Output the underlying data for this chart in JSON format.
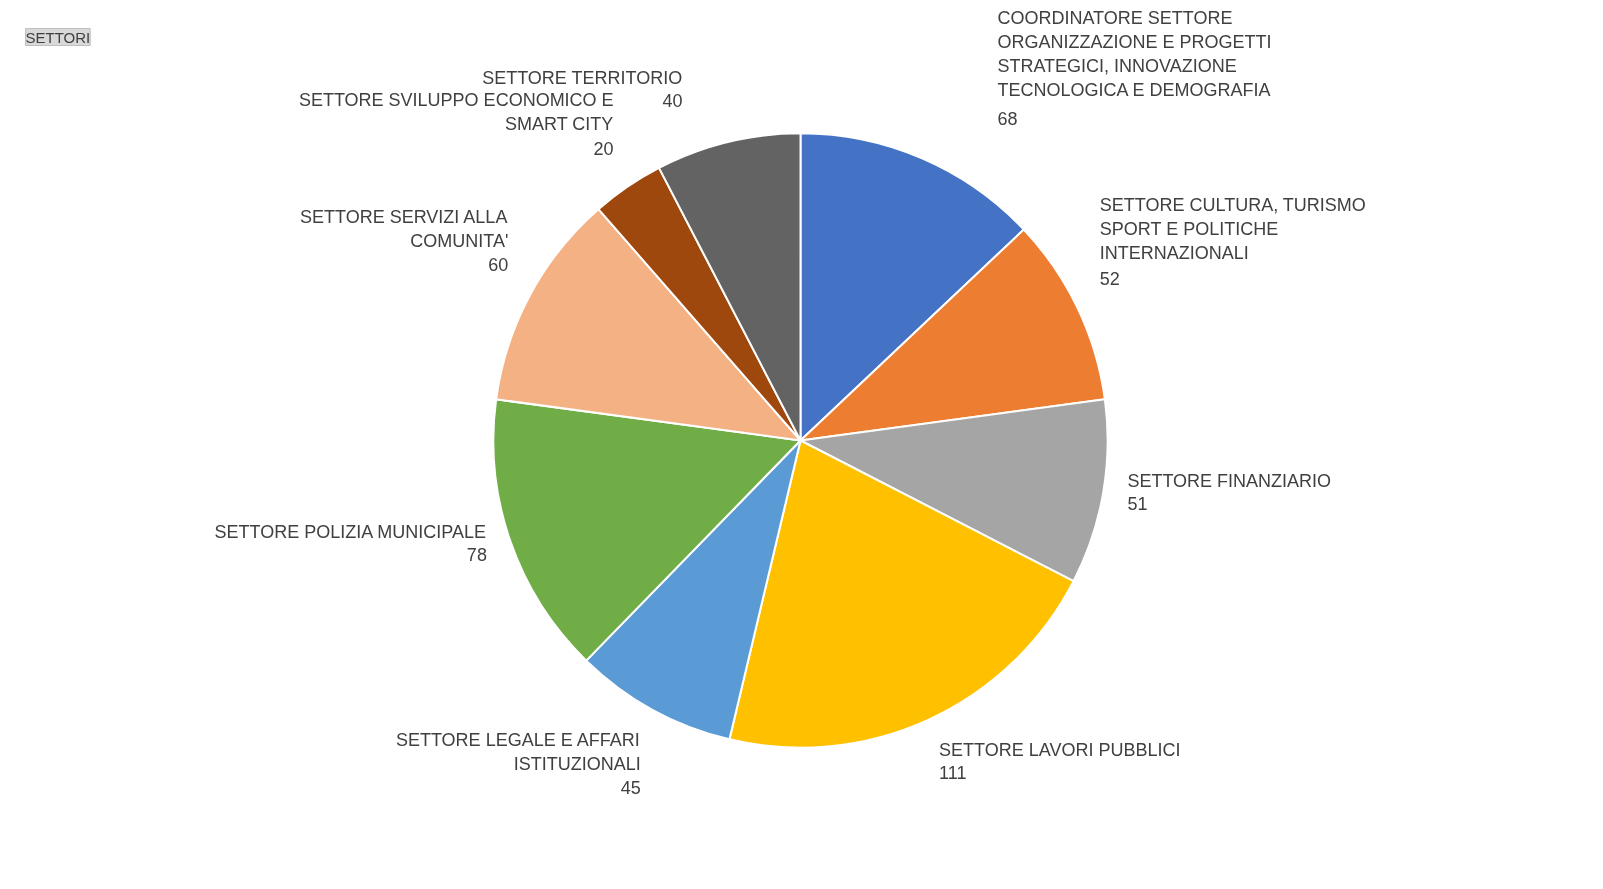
{
  "chart_data": {
    "type": "pie",
    "categories": [
      "COORDINATORE SETTORE ORGANIZZAZIONE E PROGETTI STRATEGICI, INNOVAZIONE TECNOLOGICA E DEMOGRAFIA",
      "SETTORE CULTURA, TURISMO SPORT E POLITICHE INTERNAZIONALI",
      "SETTORE FINANZIARIO",
      "SETTORE LAVORI PUBBLICI",
      "SETTORE LEGALE E AFFARI ISTITUZIONALI",
      "SETTORE POLIZIA MUNICIPALE",
      "SETTORE SERVIZI ALLA COMUNITA'",
      "SETTORE SVILUPPO ECONOMICO E SMART CITY",
      "SETTORE TERRITORIO"
    ],
    "values": [
      68,
      52,
      51,
      111,
      45,
      78,
      60,
      20,
      40
    ],
    "colors": [
      "#4472c4",
      "#ed7d31",
      "#a5a5a5",
      "#ffc000",
      "#5b9bd5",
      "#70ad47",
      "#f4b183",
      "#9e480e",
      "#636363"
    ],
    "data_labels": true,
    "annotations": [
      "SETTORI"
    ]
  }
}
